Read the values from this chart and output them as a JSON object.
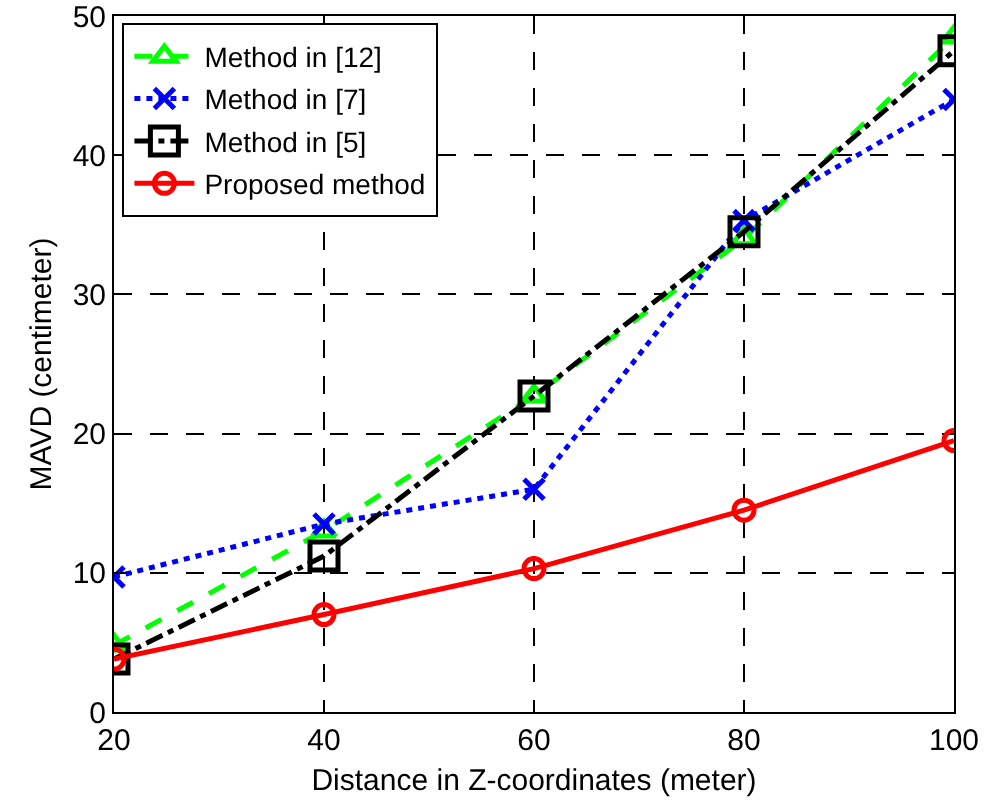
{
  "chart_data": {
    "type": "line",
    "xlabel": "Distance in Z-coordinates (meter)",
    "ylabel": "MAVD (centimeter)",
    "x": [
      20,
      40,
      60,
      80,
      100
    ],
    "series": [
      {
        "name": "Method in [12]",
        "color": "#00ff00",
        "marker": "triangle",
        "line_style": "dashed",
        "values": [
          4.8,
          13,
          22.7,
          34,
          48.5
        ]
      },
      {
        "name": "Method in [7]",
        "color": "#0000ff",
        "marker": "cross",
        "line_style": "dotted",
        "values": [
          9.7,
          13.5,
          16,
          35.3,
          44
        ]
      },
      {
        "name": "Method in [5]",
        "color": "#000000",
        "marker": "square",
        "line_style": "dashdot",
        "values": [
          3.8,
          11.2,
          22.7,
          34.5,
          47.5
        ]
      },
      {
        "name": "Proposed method",
        "color": "#ff0000",
        "marker": "circle",
        "line_style": "solid",
        "values": [
          3.8,
          7,
          10.3,
          14.5,
          19.5
        ]
      }
    ],
    "xlim": [
      20,
      100
    ],
    "xticks": [
      20,
      40,
      60,
      80,
      100
    ],
    "ylim": [
      0,
      50
    ],
    "yticks": [
      0,
      10,
      20,
      30,
      40,
      50
    ],
    "grid": true,
    "legend": "top left"
  }
}
